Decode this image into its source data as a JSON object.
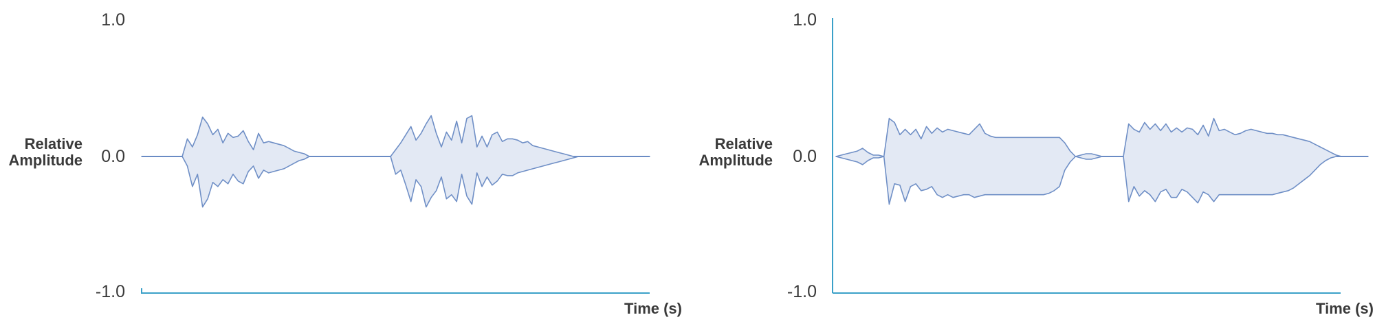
{
  "chart_data": [
    {
      "type": "area",
      "xlabel": "Time (s)",
      "ylabel": [
        "Relative",
        "Amplitude"
      ],
      "ylim": [
        -1.0,
        1.0
      ],
      "yticks": [
        "1.0",
        "0.0",
        "-1.0"
      ],
      "ytick_values": [
        1.0,
        0.0,
        -1.0
      ],
      "xlim": [
        0,
        100
      ],
      "show_y_axis_line": false,
      "grid": false,
      "colors": {
        "fill": "#e3e9f4",
        "stroke": "#6f8fc6",
        "axis": "#3aa0c8"
      },
      "series": [
        {
          "x": [
            0,
            8,
            9,
            10,
            11,
            12,
            13,
            14,
            15,
            16,
            17,
            18,
            19,
            20,
            21,
            22,
            23,
            24,
            25,
            26,
            27,
            28,
            29,
            30,
            31,
            32,
            33,
            34,
            35,
            36,
            37,
            38,
            39,
            40,
            41,
            42,
            43,
            44,
            45,
            46,
            47,
            48,
            49,
            50,
            51,
            52,
            53,
            54,
            55,
            56,
            57,
            58,
            59,
            60,
            61,
            62,
            63,
            64,
            65,
            66,
            67,
            68,
            69,
            70,
            71,
            72,
            73,
            74,
            75,
            76,
            77,
            78,
            79,
            80,
            81,
            82,
            83,
            84,
            85,
            86,
            87,
            88,
            89,
            90,
            91,
            92,
            93,
            94,
            95,
            100
          ],
          "upper": [
            0,
            0,
            0.13,
            0.07,
            0.16,
            0.29,
            0.24,
            0.16,
            0.2,
            0.1,
            0.17,
            0.14,
            0.15,
            0.19,
            0.11,
            0.05,
            0.17,
            0.1,
            0.11,
            0.1,
            0.09,
            0.08,
            0.06,
            0.04,
            0.03,
            0.02,
            0.0,
            0.0,
            0.0,
            0.0,
            0.0,
            0.0,
            0.0,
            0.0,
            0.0,
            0.0,
            0.0,
            0.0,
            0.0,
            0.0,
            0.0,
            0.0,
            0.0,
            0.05,
            0.1,
            0.16,
            0.22,
            0.12,
            0.17,
            0.24,
            0.3,
            0.17,
            0.07,
            0.18,
            0.12,
            0.26,
            0.1,
            0.28,
            0.3,
            0.07,
            0.15,
            0.07,
            0.16,
            0.18,
            0.11,
            0.13,
            0.13,
            0.12,
            0.1,
            0.11,
            0.08,
            0.07,
            0.06,
            0.05,
            0.04,
            0.03,
            0.02,
            0.01,
            0.0,
            0.0,
            0.0,
            0.0,
            0.0,
            0.0,
            0.0,
            0.0,
            0.0,
            0.0,
            0.0,
            0.0
          ],
          "lower": [
            0,
            0,
            -0.07,
            -0.22,
            -0.13,
            -0.37,
            -0.31,
            -0.19,
            -0.22,
            -0.17,
            -0.2,
            -0.13,
            -0.18,
            -0.2,
            -0.11,
            -0.07,
            -0.16,
            -0.1,
            -0.12,
            -0.11,
            -0.1,
            -0.09,
            -0.07,
            -0.05,
            -0.03,
            -0.02,
            0.0,
            0.0,
            0.0,
            0.0,
            0.0,
            0.0,
            0.0,
            0.0,
            0.0,
            0.0,
            0.0,
            0.0,
            0.0,
            0.0,
            0.0,
            0.0,
            0.0,
            -0.13,
            -0.1,
            -0.21,
            -0.33,
            -0.17,
            -0.22,
            -0.37,
            -0.3,
            -0.25,
            -0.15,
            -0.31,
            -0.28,
            -0.33,
            -0.13,
            -0.29,
            -0.35,
            -0.12,
            -0.22,
            -0.15,
            -0.21,
            -0.18,
            -0.13,
            -0.14,
            -0.14,
            -0.12,
            -0.11,
            -0.1,
            -0.09,
            -0.08,
            -0.07,
            -0.06,
            -0.05,
            -0.04,
            -0.03,
            -0.02,
            -0.01,
            0.0,
            0.0,
            0.0,
            0.0,
            0.0,
            0.0,
            0.0,
            0.0,
            0.0,
            0.0,
            0.0
          ]
        }
      ]
    },
    {
      "type": "area",
      "xlabel": "Time (s)",
      "ylabel": [
        "Relative",
        "Amplitude"
      ],
      "ylim": [
        -1.0,
        1.0
      ],
      "yticks": [
        "1.0",
        "0.0",
        "-1.0"
      ],
      "ytick_values": [
        1.0,
        0.0,
        -1.0
      ],
      "xlim": [
        0,
        100
      ],
      "show_y_axis_line": true,
      "grid": false,
      "colors": {
        "fill": "#e3e9f4",
        "stroke": "#6f8fc6",
        "axis": "#3aa0c8"
      },
      "series": [
        {
          "x": [
            0,
            1,
            2,
            3,
            4,
            5,
            6,
            7,
            8,
            9,
            10,
            11,
            12,
            13,
            14,
            15,
            16,
            17,
            18,
            19,
            20,
            21,
            22,
            23,
            24,
            25,
            26,
            27,
            28,
            29,
            30,
            31,
            32,
            33,
            34,
            35,
            36,
            37,
            38,
            39,
            40,
            41,
            42,
            43,
            44,
            45,
            46,
            47,
            48,
            49,
            50,
            51,
            52,
            53,
            54,
            55,
            56,
            57,
            58,
            59,
            60,
            61,
            62,
            63,
            64,
            65,
            66,
            67,
            68,
            69,
            70,
            71,
            72,
            73,
            74,
            75,
            76,
            77,
            78,
            79,
            80,
            81,
            82,
            83,
            84,
            85,
            86,
            87,
            88,
            89,
            90,
            91,
            92,
            93,
            94,
            95,
            96,
            97,
            98,
            100
          ],
          "upper": [
            0.0,
            0.01,
            0.02,
            0.03,
            0.04,
            0.06,
            0.03,
            0.01,
            0.01,
            0.0,
            0.28,
            0.25,
            0.16,
            0.2,
            0.16,
            0.2,
            0.13,
            0.22,
            0.17,
            0.21,
            0.18,
            0.2,
            0.19,
            0.18,
            0.17,
            0.16,
            0.2,
            0.24,
            0.17,
            0.15,
            0.14,
            0.14,
            0.14,
            0.14,
            0.14,
            0.14,
            0.14,
            0.14,
            0.14,
            0.14,
            0.14,
            0.14,
            0.14,
            0.1,
            0.04,
            0.0,
            0.01,
            0.02,
            0.02,
            0.01,
            0.0,
            0.0,
            0.0,
            0.0,
            0.0,
            0.24,
            0.2,
            0.18,
            0.25,
            0.2,
            0.24,
            0.19,
            0.24,
            0.18,
            0.21,
            0.18,
            0.21,
            0.2,
            0.16,
            0.23,
            0.15,
            0.28,
            0.19,
            0.2,
            0.18,
            0.16,
            0.17,
            0.19,
            0.2,
            0.19,
            0.18,
            0.17,
            0.17,
            0.16,
            0.16,
            0.15,
            0.14,
            0.13,
            0.12,
            0.11,
            0.09,
            0.07,
            0.05,
            0.03,
            0.01,
            0.0,
            0.0,
            0.0,
            0.0,
            0.0
          ],
          "lower": [
            0.0,
            -0.01,
            -0.02,
            -0.03,
            -0.04,
            -0.06,
            -0.03,
            -0.01,
            -0.01,
            0.0,
            -0.35,
            -0.2,
            -0.21,
            -0.33,
            -0.22,
            -0.2,
            -0.25,
            -0.24,
            -0.22,
            -0.28,
            -0.3,
            -0.28,
            -0.3,
            -0.29,
            -0.28,
            -0.28,
            -0.3,
            -0.29,
            -0.28,
            -0.28,
            -0.28,
            -0.28,
            -0.28,
            -0.28,
            -0.28,
            -0.28,
            -0.28,
            -0.28,
            -0.28,
            -0.28,
            -0.27,
            -0.25,
            -0.22,
            -0.1,
            -0.04,
            0.0,
            -0.01,
            -0.02,
            -0.02,
            -0.01,
            0.0,
            0.0,
            0.0,
            0.0,
            0.0,
            -0.33,
            -0.22,
            -0.29,
            -0.25,
            -0.28,
            -0.33,
            -0.26,
            -0.24,
            -0.3,
            -0.3,
            -0.24,
            -0.26,
            -0.3,
            -0.34,
            -0.26,
            -0.28,
            -0.33,
            -0.28,
            -0.28,
            -0.28,
            -0.28,
            -0.28,
            -0.28,
            -0.28,
            -0.28,
            -0.28,
            -0.28,
            -0.28,
            -0.27,
            -0.26,
            -0.25,
            -0.23,
            -0.2,
            -0.17,
            -0.14,
            -0.1,
            -0.06,
            -0.03,
            -0.01,
            0.0,
            0.0,
            0.0,
            0.0,
            0.0,
            0.0
          ]
        }
      ]
    }
  ]
}
